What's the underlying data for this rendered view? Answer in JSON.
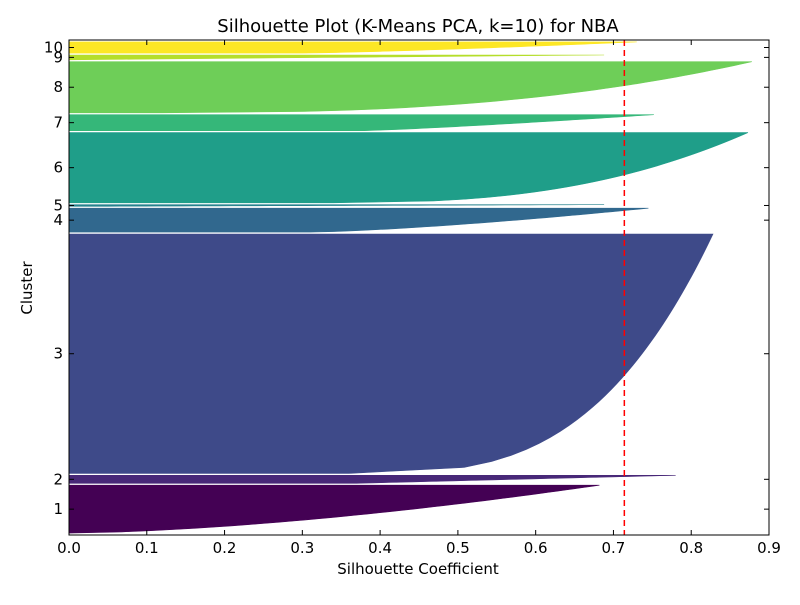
{
  "chart_data": {
    "type": "silhouette",
    "title": "Silhouette Plot (K-Means PCA, k=10) for NBA",
    "xlabel": "Silhouette Coefficient",
    "ylabel": "Cluster",
    "xlim": [
      0.0,
      0.9
    ],
    "xticks": [
      "0.0",
      "0.1",
      "0.2",
      "0.3",
      "0.4",
      "0.5",
      "0.6",
      "0.7",
      "0.8",
      "0.9"
    ],
    "grid": false,
    "average_silhouette": 0.714,
    "average_line_color": "#ff0000",
    "clusters": [
      {
        "label": "1",
        "color": "#440154",
        "samples": 30,
        "max": 0.682,
        "min": 0.0,
        "shape": 1.6
      },
      {
        "label": "2",
        "color": "#482878",
        "samples": 5,
        "max": 0.78,
        "min": 0.37,
        "shape": 1.0
      },
      {
        "label": "3",
        "color": "#3e4a89",
        "samples": 150,
        "max": 0.828,
        "min": 0.36,
        "shape": 3.2
      },
      {
        "label": "4",
        "color": "#31688e",
        "samples": 15,
        "max": 0.745,
        "min": 0.31,
        "shape": 1.4
      },
      {
        "label": "5",
        "color": "#26828e",
        "samples": 1,
        "max": 0.688,
        "min": 0.05,
        "shape": 1.0
      },
      {
        "label": "6",
        "color": "#1f9e89",
        "samples": 44,
        "max": 0.873,
        "min": 0.34,
        "shape": 2.6
      },
      {
        "label": "7",
        "color": "#35b779",
        "samples": 10,
        "max": 0.752,
        "min": 0.38,
        "shape": 1.2
      },
      {
        "label": "8",
        "color": "#6ece58",
        "samples": 32,
        "max": 0.878,
        "min": 0.12,
        "shape": 2.6
      },
      {
        "label": "9",
        "color": "#b5de2b",
        "samples": 3,
        "max": 0.688,
        "min": 0.0,
        "shape": 1.0
      },
      {
        "label": "10",
        "color": "#fde725",
        "samples": 7,
        "max": 0.73,
        "min": 0.3,
        "shape": 1.3
      }
    ]
  }
}
